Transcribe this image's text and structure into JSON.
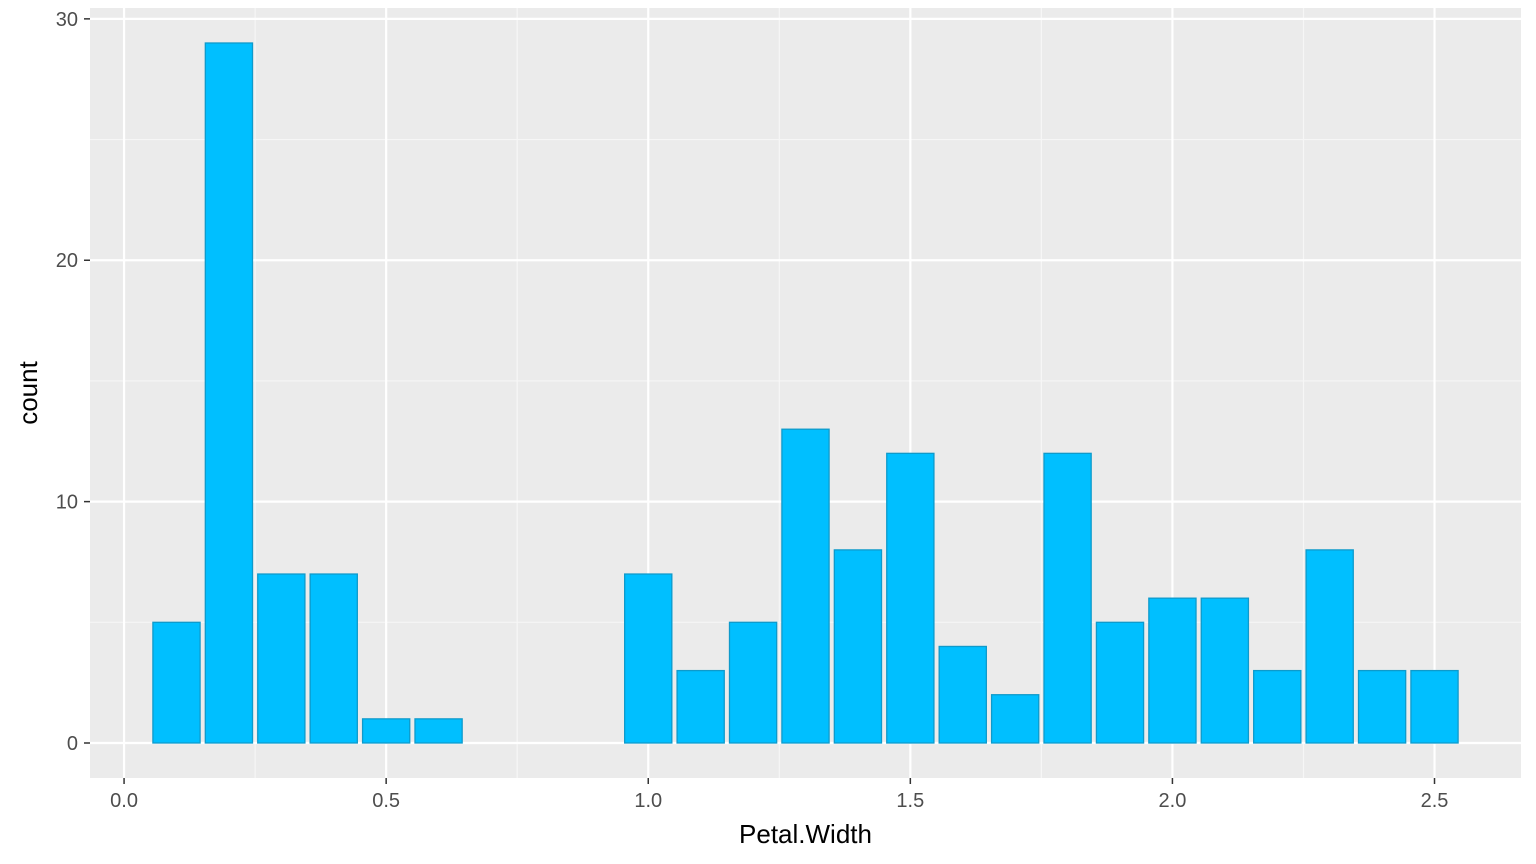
{
  "chart_data": {
    "type": "bar",
    "title": "",
    "xlabel": "Petal.Width",
    "ylabel": "count",
    "x": [
      0.1,
      0.2,
      0.3,
      0.4,
      0.5,
      0.6,
      1.0,
      1.1,
      1.2,
      1.3,
      1.4,
      1.5,
      1.6,
      1.7,
      1.8,
      1.9,
      2.0,
      2.1,
      2.2,
      2.3,
      2.4,
      2.5
    ],
    "values": [
      5,
      29,
      7,
      7,
      1,
      1,
      7,
      3,
      5,
      13,
      8,
      12,
      4,
      2,
      12,
      5,
      6,
      6,
      3,
      8,
      3,
      3
    ],
    "bar_width": 0.09,
    "xlim": [
      -0.065,
      2.665
    ],
    "ylim": [
      -1.45,
      30.45
    ],
    "x_ticks": [
      0.0,
      0.5,
      1.0,
      1.5,
      2.0,
      2.5
    ],
    "x_tick_labels": [
      "0.0",
      "0.5",
      "1.0",
      "1.5",
      "2.0",
      "2.5"
    ],
    "x_minor_ticks": [
      0.25,
      0.75,
      1.25,
      1.75,
      2.25
    ],
    "y_ticks": [
      0,
      10,
      20,
      30
    ],
    "y_tick_labels": [
      "0",
      "10",
      "20",
      "30"
    ],
    "y_minor_ticks": [
      5,
      15,
      25
    ],
    "grid": true,
    "legend": "none",
    "colors": {
      "bar_fill": "#00BFFF",
      "bar_stroke": "#0E9ACB",
      "panel_background": "#EBEBEB",
      "grid_major": "#FFFFFF",
      "grid_minor": "#F6F6F6",
      "tick_mark": "#333333"
    }
  }
}
